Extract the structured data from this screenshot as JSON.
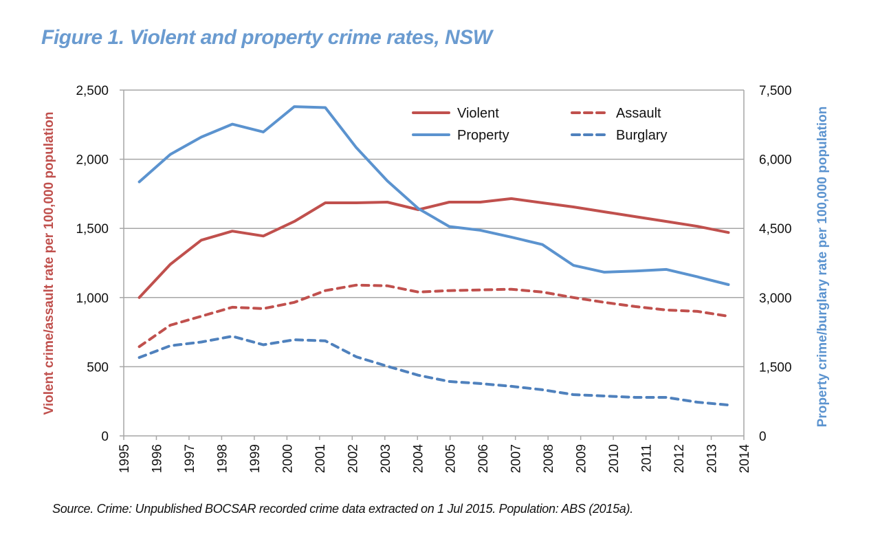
{
  "title": "Figure 1. Violent and property crime rates, NSW",
  "source": "Source. Crime: Unpublished BOCSAR recorded crime data extracted on 1 Jul 2015. Population: ABS (2015a).",
  "colors": {
    "title": "#6a9bd0",
    "red": "#c0504d",
    "blue": "#5b93cf",
    "blue_dashed": "#4f81bd",
    "grid": "#a6a6a6",
    "left_axis_title": "#c0504d",
    "right_axis_title": "#5b93cf"
  },
  "chart_data": {
    "type": "line",
    "title": "Figure 1. Violent and property crime rates, NSW",
    "xlabel": "",
    "x_tick_labels": [
      "1995",
      "1996",
      "1997",
      "1998",
      "1999",
      "2000",
      "2001",
      "2002",
      "2003",
      "2004",
      "2005",
      "2006",
      "2007",
      "2008",
      "2009",
      "2010",
      "2011",
      "2012",
      "2013",
      "2014"
    ],
    "ylabel_left": "Violent crime/assault rate per 100,000 population",
    "ylabel_right": "Property crime/burglary rate per 100,000 population",
    "ylim_left": [
      0,
      2500
    ],
    "ylim_right": [
      0,
      7500
    ],
    "yticks_left": [
      "0",
      "500",
      "1,000",
      "1,500",
      "2,000",
      "2,500"
    ],
    "yticks_right": [
      "0",
      "1,500",
      "3,000",
      "4,500",
      "6,000",
      "7,500"
    ],
    "grid": true,
    "legend_position": "top-right",
    "series": [
      {
        "name": "Violent",
        "axis": "left",
        "style": "solid",
        "color": "#c0504d",
        "values": [
          1000,
          1240,
          1415,
          1480,
          1445,
          1550,
          1685,
          1685,
          1690,
          1635,
          1690,
          1690,
          1715,
          1685,
          1655,
          1620,
          1585,
          1550,
          1515,
          1470
        ]
      },
      {
        "name": "Assault",
        "axis": "left",
        "style": "dashed",
        "color": "#c0504d",
        "values": [
          645,
          800,
          865,
          930,
          920,
          965,
          1050,
          1090,
          1085,
          1040,
          1050,
          1055,
          1060,
          1040,
          1000,
          965,
          935,
          910,
          900,
          865
        ]
      },
      {
        "name": "Property",
        "axis": "right",
        "style": "solid",
        "color": "#5b93cf",
        "values": [
          5510,
          6105,
          6480,
          6760,
          6590,
          7140,
          7120,
          6250,
          5530,
          4930,
          4540,
          4460,
          4310,
          4150,
          3700,
          3550,
          3575,
          3610,
          3450,
          3280
        ]
      },
      {
        "name": "Burglary",
        "axis": "right",
        "style": "dashed",
        "color": "#4f81bd",
        "values": [
          1700,
          1955,
          2035,
          2160,
          1975,
          2085,
          2060,
          1715,
          1510,
          1315,
          1180,
          1135,
          1075,
          1000,
          895,
          865,
          835,
          835,
          730,
          670
        ]
      }
    ]
  },
  "legend": [
    {
      "label": "Violent",
      "style": "solid",
      "color": "#c0504d"
    },
    {
      "label": "Assault",
      "style": "dashed",
      "color": "#c0504d"
    },
    {
      "label": "Property",
      "style": "solid",
      "color": "#5b93cf"
    },
    {
      "label": "Burglary",
      "style": "dashed",
      "color": "#4f81bd"
    }
  ]
}
